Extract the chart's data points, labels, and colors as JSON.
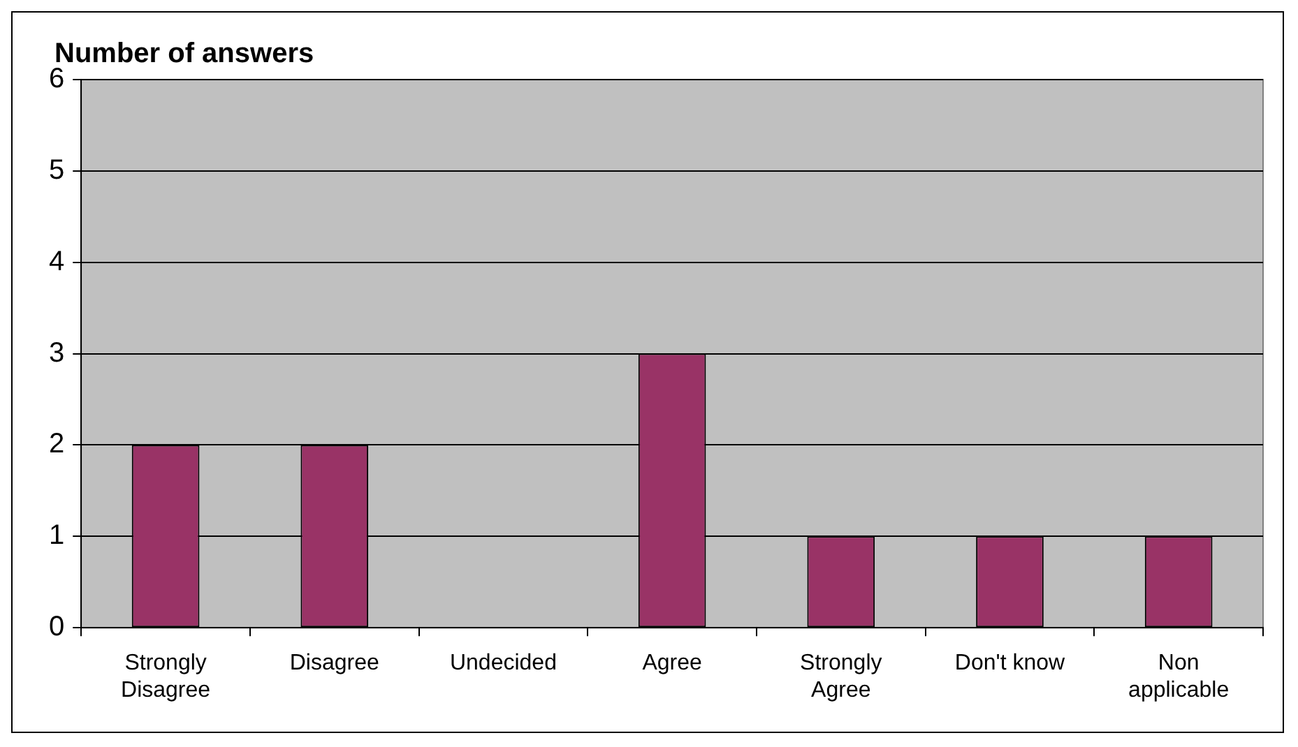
{
  "chart_data": {
    "type": "bar",
    "ylabel": "Number of answers",
    "categories": [
      "Strongly Disagree",
      "Disagree",
      "Undecided",
      "Agree",
      "Strongly Agree",
      "Don't know",
      "Non applicable"
    ],
    "values": [
      2,
      2,
      0,
      3,
      1,
      1,
      1
    ],
    "color": "#993366",
    "ylim": [
      0,
      6
    ],
    "yticks": [
      0,
      1,
      2,
      3,
      4,
      5,
      6
    ],
    "grid": "y",
    "legend": false
  }
}
